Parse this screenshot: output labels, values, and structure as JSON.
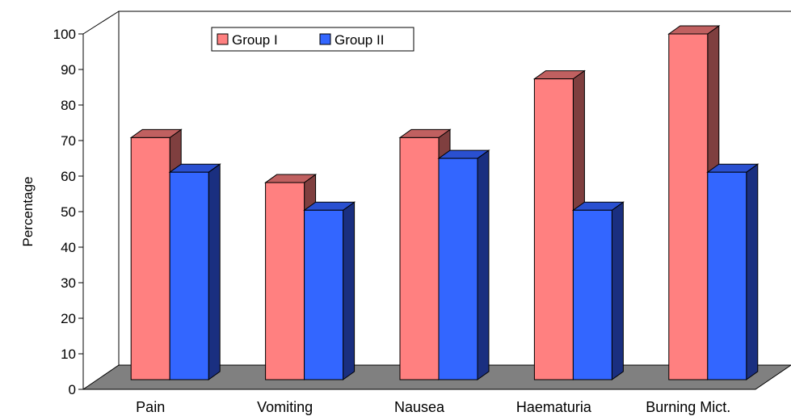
{
  "chart_data": {
    "type": "bar",
    "title": "",
    "xlabel": "",
    "ylabel": "Percentage",
    "ylim": [
      0,
      100
    ],
    "yticks": [
      0,
      10,
      20,
      30,
      40,
      50,
      60,
      70,
      80,
      90,
      100
    ],
    "categories": [
      "Pain",
      "Vomiting",
      "Nausea",
      "Haematuria",
      "Burning Mict."
    ],
    "series": [
      {
        "name": "Group I",
        "values": [
          70,
          57,
          70,
          87,
          100
        ],
        "color": "#ff8080",
        "side_color": "#7f3f3f",
        "top_color": "#c06060"
      },
      {
        "name": "Group II",
        "values": [
          60,
          49,
          64,
          49,
          60
        ],
        "color": "#3366ff",
        "side_color": "#1a2f80",
        "top_color": "#2a50d0"
      }
    ],
    "legend_position": "top-left",
    "floor_color": "#808080",
    "style": "3d-clustered"
  }
}
